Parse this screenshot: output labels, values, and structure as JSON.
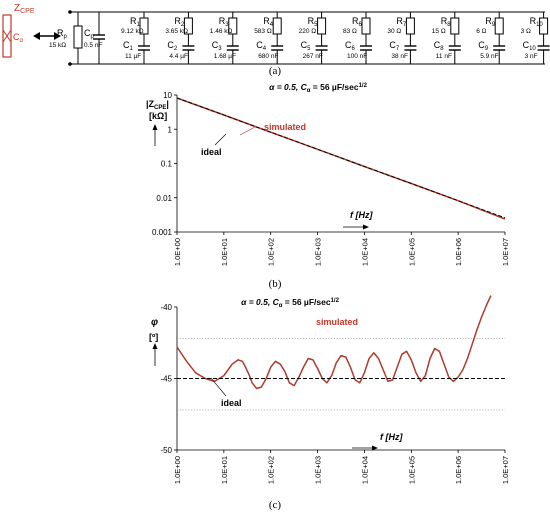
{
  "figure": {
    "panel_labels": [
      "(a)",
      "(b)",
      "(c)"
    ]
  },
  "circuit": {
    "cpe_symbol": "Z",
    "cpe_symbol_sub": "CPE",
    "cpe_param": "C",
    "cpe_param_sub": "α",
    "rp": {
      "label": "R",
      "sub": "p",
      "value": "15 kΩ"
    },
    "cp": {
      "label": "C",
      "sub": "p",
      "value": "0.5 nF"
    },
    "branches": [
      {
        "r": "R",
        "rsub": "1",
        "rval": "9.12 kΩ",
        "c": "C",
        "csub": "1",
        "cval": "11 µF"
      },
      {
        "r": "R",
        "rsub": "2",
        "rval": "3.65 kΩ",
        "c": "C",
        "csub": "2",
        "cval": "4.4 µF"
      },
      {
        "r": "R",
        "rsub": "3",
        "rval": "1.46 kΩ",
        "c": "C",
        "csub": "3",
        "cval": "1.68 µF"
      },
      {
        "r": "R",
        "rsub": "4",
        "rval": "583 Ω",
        "c": "C",
        "csub": "4",
        "cval": "680 nF"
      },
      {
        "r": "R",
        "rsub": "5",
        "rval": "220 Ω",
        "c": "C",
        "csub": "5",
        "cval": "267 nF"
      },
      {
        "r": "R",
        "rsub": "6",
        "rval": "83 Ω",
        "c": "C",
        "csub": "6",
        "cval": "100 nF"
      },
      {
        "r": "R",
        "rsub": "7",
        "rval": "30 Ω",
        "c": "C",
        "csub": "7",
        "cval": "38 nF"
      },
      {
        "r": "R",
        "rsub": "8",
        "rval": "15 Ω",
        "c": "C",
        "csub": "8",
        "cval": "11 nF"
      },
      {
        "r": "R",
        "rsub": "9",
        "rval": "6 Ω",
        "c": "C",
        "csub": "9",
        "cval": "5.9 nF"
      },
      {
        "r": "R",
        "rsub": "10",
        "rval": "3 Ω",
        "c": "C",
        "csub": "10",
        "cval": "3 nF"
      }
    ]
  },
  "colors": {
    "simulated": "#b03a2e",
    "ideal": "#000000",
    "cpe": "#c0392b",
    "grid": "#888888"
  },
  "chart_data": [
    {
      "type": "line",
      "title_parts": [
        "α = 0.5, ",
        "C",
        "α",
        " = 56 µF/sec",
        "1/2"
      ],
      "ylabel_parts": [
        "|Z",
        "CPE",
        "|",
        "[kΩ]"
      ],
      "xlabel": "f [Hz]",
      "x_scale": "log",
      "y_scale": "log",
      "xlim": [
        1,
        10000000
      ],
      "ylim": [
        0.001,
        10
      ],
      "x_ticks": [
        "1.0E+00",
        "1.0E+01",
        "1.0E+02",
        "1.0E+03",
        "1.0E+04",
        "1.0E+05",
        "1.0E+06",
        "1.0E+07"
      ],
      "y_ticks": [
        "10",
        "1",
        "0.1",
        "0.01",
        "0.001"
      ],
      "series": [
        {
          "name": "simulated",
          "x": [
            1,
            10,
            100,
            1000,
            10000,
            100000,
            1000000,
            10000000
          ],
          "y": [
            8.2,
            2.6,
            0.82,
            0.26,
            0.082,
            0.026,
            0.0082,
            0.0024
          ]
        },
        {
          "name": "ideal",
          "x": [
            1,
            10,
            100,
            1000,
            10000,
            100000,
            1000000,
            10000000
          ],
          "y": [
            8.2,
            2.6,
            0.82,
            0.26,
            0.082,
            0.026,
            0.0082,
            0.0026
          ]
        }
      ],
      "annotations": [
        "simulated",
        "ideal"
      ]
    },
    {
      "type": "line",
      "title_parts": [
        "α = 0.5, ",
        "C",
        "α",
        " = 56 µF/sec",
        "1/2"
      ],
      "ylabel_parts": [
        "φ",
        "[º]"
      ],
      "xlabel": "f [Hz]",
      "x_scale": "log",
      "xlim": [
        1,
        10000000
      ],
      "ylim": [
        -50,
        -40
      ],
      "x_ticks": [
        "1.0E+00",
        "1.0E+01",
        "1.0E+02",
        "1.0E+03",
        "1.0E+04",
        "1.0E+05",
        "1.0E+06",
        "1.0E+07"
      ],
      "y_ticks": [
        "-40",
        "-45",
        "-50"
      ],
      "reference_lines": [
        -42.2,
        -45,
        -47.2
      ],
      "series": [
        {
          "name": "simulated",
          "x": [
            1,
            1.6,
            2.5,
            4,
            6.3,
            10,
            15,
            20,
            25,
            30,
            35,
            40,
            50,
            63,
            80,
            100,
            126,
            160,
            200,
            250,
            316,
            400,
            500,
            631,
            800,
            1000,
            1259,
            1585,
            2000,
            2512,
            3162,
            4000,
            5012,
            6310,
            7943,
            10000,
            12589,
            15849,
            20000,
            25119,
            31623,
            40000,
            50119,
            63096,
            79433,
            100000,
            125893,
            158489,
            200000,
            251189,
            316228,
            398107,
            501187,
            630957,
            794328,
            1000000,
            1258925,
            1584893,
            2000000,
            2511886,
            3162278,
            3981072,
            5011872
          ],
          "y": [
            -42.8,
            -43.8,
            -44.6,
            -45.0,
            -45.2,
            -44.8,
            -44.0,
            -43.7,
            -43.8,
            -44.3,
            -44.8,
            -45.3,
            -45.7,
            -45.6,
            -45.0,
            -44.2,
            -43.8,
            -44.0,
            -44.5,
            -45.3,
            -45.5,
            -44.9,
            -44.2,
            -43.6,
            -43.7,
            -44.3,
            -45.0,
            -45.3,
            -44.8,
            -43.9,
            -43.4,
            -43.5,
            -44.2,
            -45.1,
            -45.3,
            -44.6,
            -43.6,
            -43.2,
            -43.6,
            -44.4,
            -45.2,
            -45.1,
            -44.2,
            -43.3,
            -43.1,
            -43.7,
            -44.6,
            -45.2,
            -44.8,
            -43.6,
            -42.9,
            -43.1,
            -44.0,
            -44.9,
            -45.2,
            -44.9,
            -44.4,
            -43.6,
            -42.6,
            -41.6,
            -40.7,
            -39.9,
            -39.2
          ]
        },
        {
          "name": "ideal",
          "x": [
            1,
            10000000
          ],
          "y": [
            -45,
            -45
          ]
        }
      ],
      "annotations": [
        "simulated",
        "ideal"
      ]
    }
  ]
}
